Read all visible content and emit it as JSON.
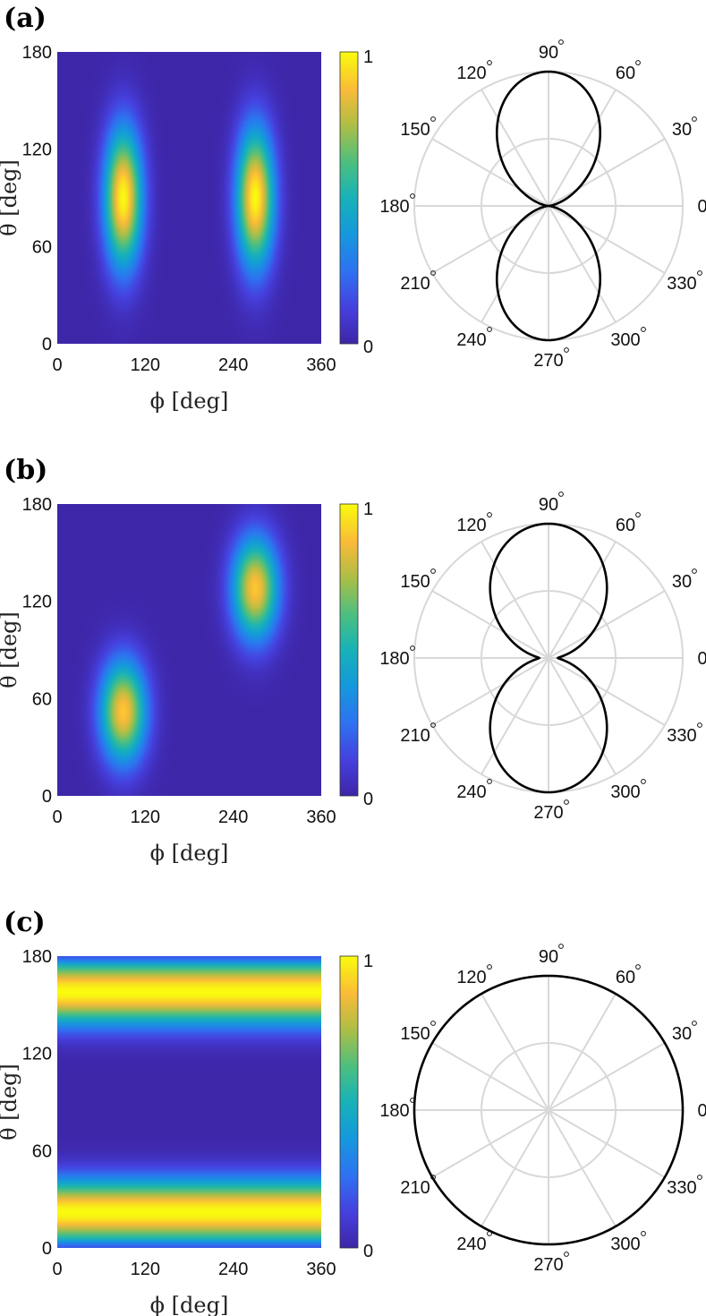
{
  "chart_data": [
    {
      "panel_label": "(a)",
      "type": "heatmap",
      "xlabel": "ϕ [deg]",
      "ylabel": "θ [deg]",
      "xlim": [
        0,
        360
      ],
      "ylim": [
        0,
        180
      ],
      "x_ticks": [
        "0",
        "120",
        "240",
        "360"
      ],
      "y_ticks": [
        "0",
        "60",
        "120",
        "180"
      ],
      "colorbar": {
        "min": 0,
        "max": 1,
        "labels": [
          "0",
          "1"
        ],
        "colormap": "parula"
      },
      "description_peaks": [
        {
          "phi": 90,
          "theta": 90,
          "sigma_phi": 18,
          "sigma_theta": 30,
          "amp": 1.0
        },
        {
          "phi": 270,
          "theta": 90,
          "sigma_phi": 18,
          "sigma_theta": 30,
          "amp": 1.0
        }
      ],
      "polar": {
        "type": "polar",
        "angle_ticks": [
          "0",
          "30",
          "60",
          "90",
          "120",
          "150",
          "180",
          "210",
          "240",
          "270",
          "300",
          "330"
        ],
        "pattern": "dipole",
        "exponent": 2
      }
    },
    {
      "panel_label": "(b)",
      "type": "heatmap",
      "xlabel": "ϕ [deg]",
      "ylabel": "θ [deg]",
      "xlim": [
        0,
        360
      ],
      "ylim": [
        0,
        180
      ],
      "x_ticks": [
        "0",
        "120",
        "240",
        "360"
      ],
      "y_ticks": [
        "0",
        "60",
        "120",
        "180"
      ],
      "colorbar": {
        "min": 0,
        "max": 1,
        "labels": [
          "0",
          "1"
        ],
        "colormap": "parula"
      },
      "description_peaks": [
        {
          "phi": 90,
          "theta": 52,
          "sigma_phi": 22,
          "sigma_theta": 22,
          "amp": 0.9
        },
        {
          "phi": 270,
          "theta": 128,
          "sigma_phi": 22,
          "sigma_theta": 22,
          "amp": 0.9
        }
      ],
      "polar": {
        "type": "polar",
        "angle_ticks": [
          "0",
          "30",
          "60",
          "90",
          "120",
          "150",
          "180",
          "210",
          "240",
          "270",
          "300",
          "330"
        ],
        "pattern": "dipole-plus-isotropic",
        "exponent": 1.6
      }
    },
    {
      "panel_label": "(c)",
      "type": "heatmap",
      "xlabel": "ϕ [deg]",
      "ylabel": "θ [deg]",
      "xlim": [
        0,
        360
      ],
      "ylim": [
        0,
        180
      ],
      "x_ticks": [
        "0",
        "120",
        "240",
        "360"
      ],
      "y_ticks": [
        "0",
        "60",
        "120",
        "180"
      ],
      "colorbar": {
        "min": 0,
        "max": 1,
        "labels": [
          "0",
          "1"
        ],
        "colormap": "parula"
      },
      "bands": [
        {
          "theta": 22,
          "sigma_theta": 14,
          "amp": 1.0
        },
        {
          "theta": 158,
          "sigma_theta": 14,
          "amp": 1.0
        }
      ],
      "polar": {
        "type": "polar",
        "angle_ticks": [
          "0",
          "30",
          "60",
          "90",
          "120",
          "150",
          "180",
          "210",
          "240",
          "270",
          "300",
          "330"
        ],
        "pattern": "isotropic",
        "exponent": 0
      }
    }
  ]
}
